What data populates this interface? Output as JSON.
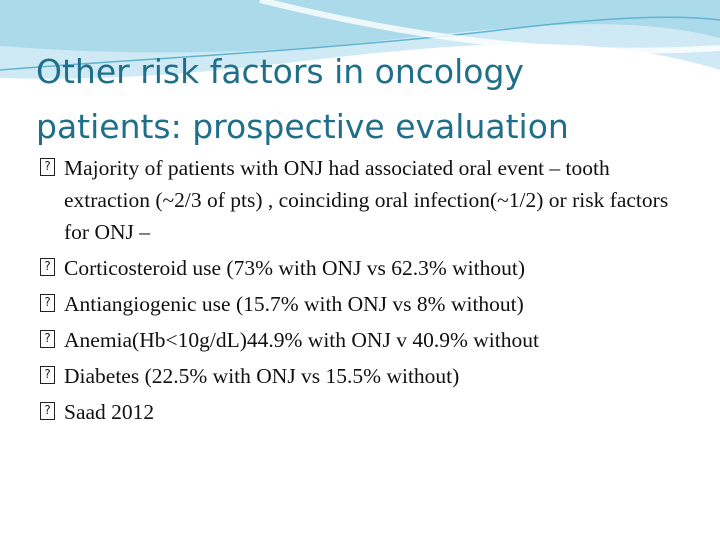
{
  "slide": {
    "title_line1": "Other risk factors in oncology",
    "title_line2": "patients: prospective evaluation",
    "bullets": [
      "Majority of patients with ONJ had associated oral event – tooth extraction (~2/3 of pts) , coinciding oral infection(~1/2) or risk factors for ONJ –",
      "Corticosteroid use (73% with ONJ vs 62.3% without)",
      "Antiangiogenic use (15.7% with ONJ vs 8% without)",
      "Anemia(Hb<10g/dL)44.9% with ONJ v 40.9% without",
      "Diabetes (22.5% with ONJ vs 15.5% without)",
      "Saad 2012"
    ],
    "bullet_marker_icon": "missing-glyph-icon"
  },
  "colors": {
    "title": "#1f6f8b",
    "wave_light": "#cfeaf4",
    "wave_mid": "#9fd4e8",
    "wave_line": "#5fb4d3"
  }
}
